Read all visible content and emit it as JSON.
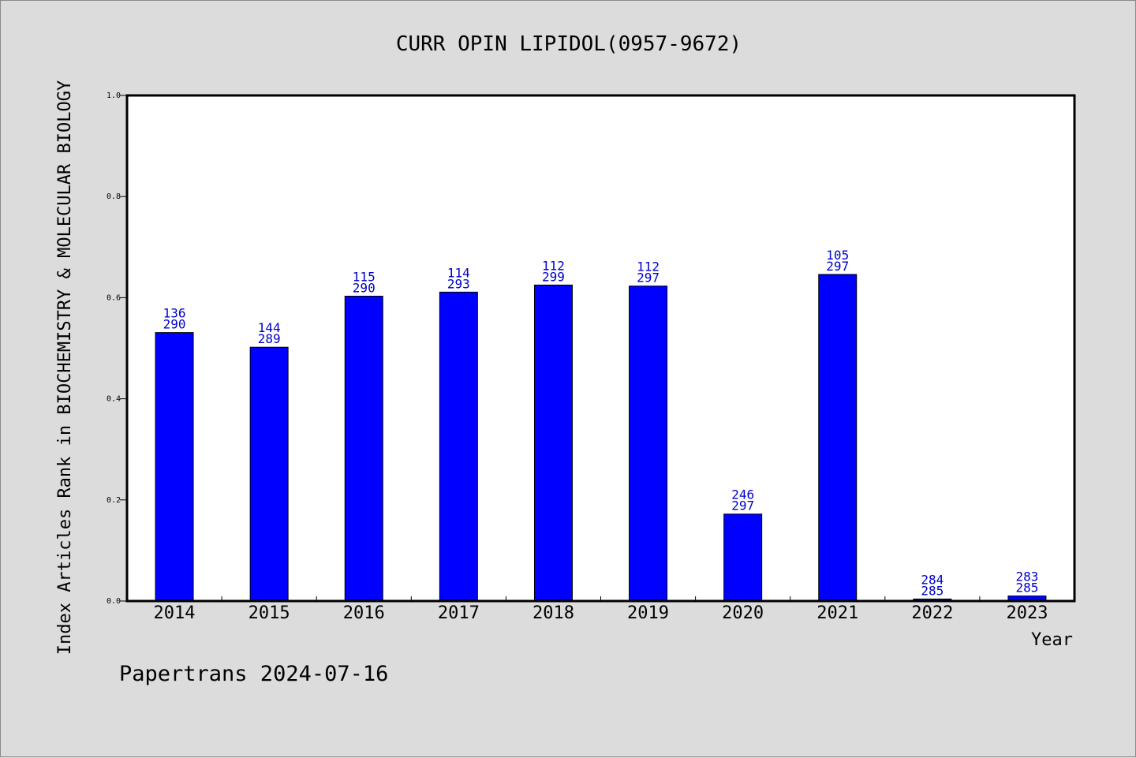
{
  "chart_data": {
    "type": "bar",
    "title": "CURR OPIN LIPIDOL(0957-9672)",
    "xlabel": "Year",
    "ylabel": "Index Articles Rank in BIOCHEMISTRY & MOLECULAR BIOLOGY",
    "footer": "Papertrans 2024-07-16",
    "categories": [
      "2014",
      "2015",
      "2016",
      "2017",
      "2018",
      "2019",
      "2020",
      "2021",
      "2022",
      "2023"
    ],
    "values": [
      0.531,
      0.502,
      0.603,
      0.611,
      0.625,
      0.623,
      0.172,
      0.646,
      0.004,
      0.01
    ],
    "rank_labels": [
      "136",
      "144",
      "115",
      "114",
      "112",
      "112",
      "246",
      "105",
      "284",
      "283"
    ],
    "total_labels": [
      "290",
      "289",
      "290",
      "293",
      "299",
      "297",
      "297",
      "297",
      "285",
      "285"
    ],
    "ylim": [
      0,
      1
    ],
    "yticks": [
      "0.0",
      "0.2",
      "0.4",
      "0.6",
      "0.8",
      "1.0"
    ],
    "grid": false,
    "colors": {
      "bar": "#0000ff",
      "bar_label": "#0000cc",
      "background": "#dcdcdc",
      "plot_background": "#ffffff"
    }
  }
}
